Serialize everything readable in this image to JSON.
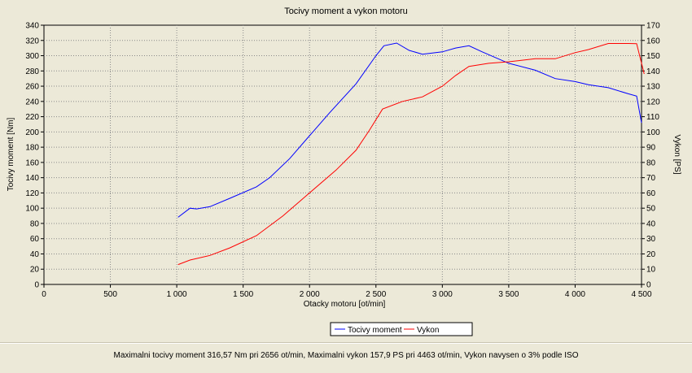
{
  "chart_data": {
    "type": "line",
    "title": "Tocivy moment a vykon motoru",
    "xlabel": "Otacky motoru [ot/min]",
    "ylabel_left": "Tocivy moment [Nm]",
    "ylabel_right": "Vykon [PS]",
    "xlim": [
      0,
      4500
    ],
    "ylim_left": [
      0,
      340
    ],
    "ylim_right": [
      0,
      170
    ],
    "x_ticks": [
      "0",
      "500",
      "1 000",
      "1 500",
      "2 000",
      "2 500",
      "3 000",
      "3 500",
      "4 000",
      "4 500"
    ],
    "x_tick_values": [
      0,
      500,
      1000,
      1500,
      2000,
      2500,
      3000,
      3500,
      4000,
      4500
    ],
    "y_left_ticks": [
      0,
      20,
      40,
      60,
      80,
      100,
      120,
      140,
      160,
      180,
      200,
      220,
      240,
      260,
      280,
      300,
      320,
      340
    ],
    "y_right_ticks": [
      0,
      10,
      20,
      30,
      40,
      50,
      60,
      70,
      80,
      90,
      100,
      110,
      120,
      130,
      140,
      150,
      160,
      170
    ],
    "grid": true,
    "legend_position": "bottom-center",
    "series": [
      {
        "name": "Tocivy moment",
        "axis": "left",
        "color": "#0000ff",
        "points": [
          [
            1010,
            88
          ],
          [
            1100,
            100
          ],
          [
            1150,
            99
          ],
          [
            1250,
            102
          ],
          [
            1400,
            113
          ],
          [
            1600,
            128
          ],
          [
            1700,
            140
          ],
          [
            1850,
            165
          ],
          [
            2000,
            195
          ],
          [
            2150,
            225
          ],
          [
            2350,
            263
          ],
          [
            2500,
            300
          ],
          [
            2560,
            313
          ],
          [
            2656,
            316.57
          ],
          [
            2750,
            307
          ],
          [
            2850,
            302
          ],
          [
            3000,
            305
          ],
          [
            3100,
            310
          ],
          [
            3200,
            313
          ],
          [
            3300,
            305
          ],
          [
            3500,
            290
          ],
          [
            3700,
            281
          ],
          [
            3850,
            270
          ],
          [
            4000,
            266
          ],
          [
            4100,
            262
          ],
          [
            4250,
            258
          ],
          [
            4400,
            250
          ],
          [
            4463,
            247
          ],
          [
            4500,
            212
          ]
        ]
      },
      {
        "name": "Vykon",
        "axis": "right",
        "color": "#ff0000",
        "points": [
          [
            1010,
            13
          ],
          [
            1100,
            16
          ],
          [
            1250,
            19
          ],
          [
            1400,
            24
          ],
          [
            1600,
            32
          ],
          [
            1800,
            45
          ],
          [
            2000,
            60
          ],
          [
            2200,
            75
          ],
          [
            2350,
            88
          ],
          [
            2450,
            101
          ],
          [
            2550,
            115
          ],
          [
            2700,
            120
          ],
          [
            2850,
            123
          ],
          [
            3000,
            130
          ],
          [
            3100,
            137
          ],
          [
            3200,
            143
          ],
          [
            3350,
            145
          ],
          [
            3500,
            146
          ],
          [
            3700,
            148
          ],
          [
            3850,
            148
          ],
          [
            4000,
            152
          ],
          [
            4100,
            154
          ],
          [
            4250,
            158
          ],
          [
            4400,
            158
          ],
          [
            4463,
            157.9
          ],
          [
            4520,
            138
          ]
        ]
      }
    ]
  },
  "footer": {
    "summary": "Maximalni tocivy moment 316,57 Nm pri 2656 ot/min,  Maximalni vykon 157,9 PS pri 4463 ot/min,  Vykon navysen o 3% podle ISO"
  }
}
